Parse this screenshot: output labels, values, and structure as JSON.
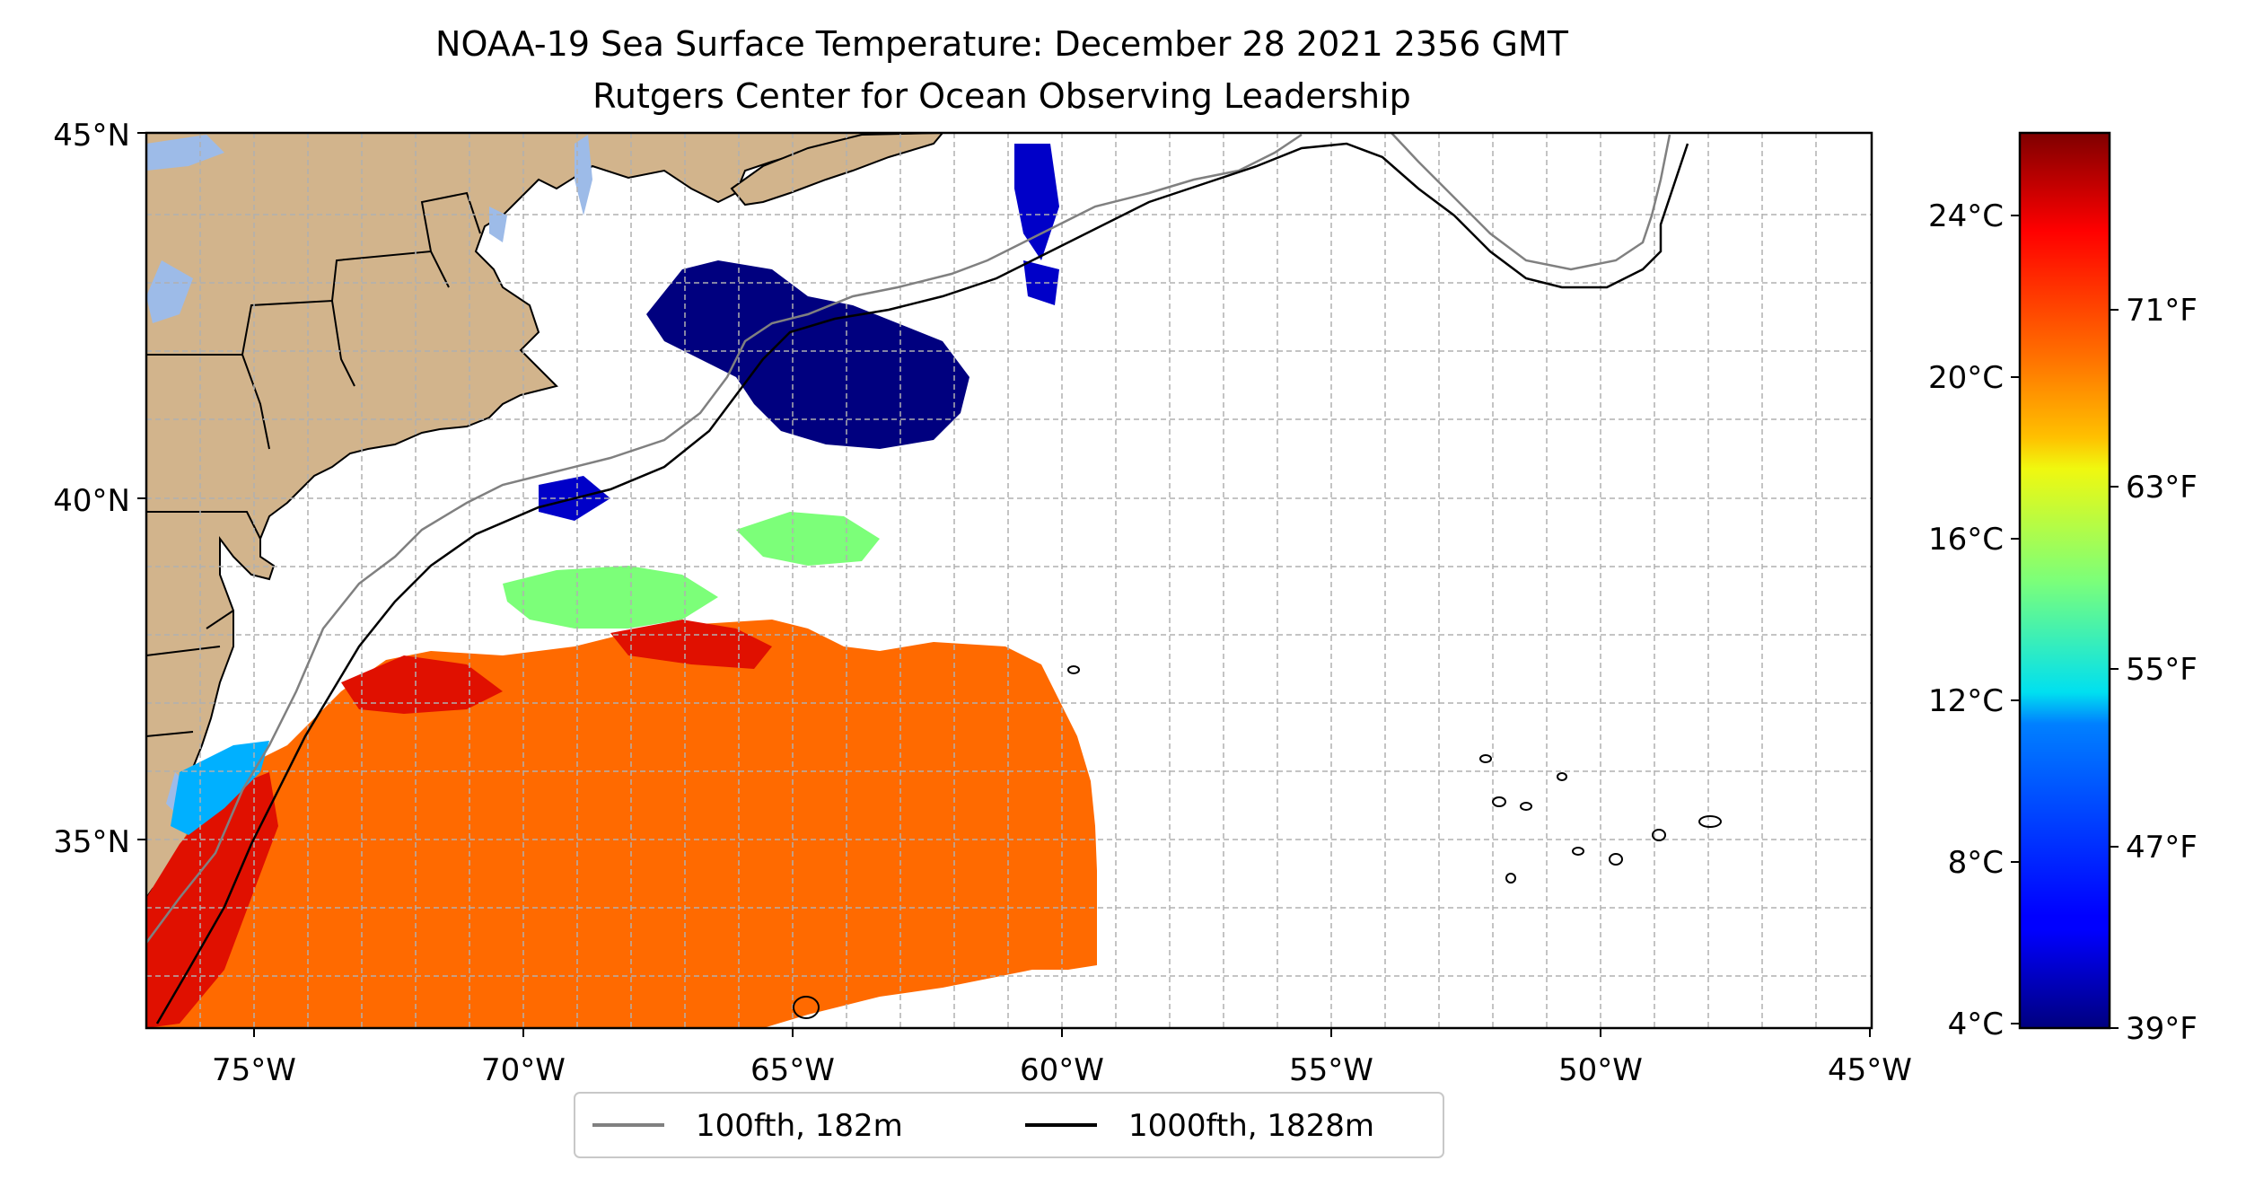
{
  "title": {
    "line1": "NOAA-19 Sea Surface Temperature: December 28 2021 2356 GMT",
    "line2": "Rutgers Center for Ocean Observing Leadership"
  },
  "map": {
    "lon_range": [
      -77,
      -45
    ],
    "lat_range": [
      32.5,
      45
    ],
    "x_ticks": [
      "75°W",
      "70°W",
      "65°W",
      "60°W",
      "55°W",
      "50°W",
      "45°W"
    ],
    "y_ticks": [
      "45°N",
      "40°N",
      "35°N"
    ],
    "colors": {
      "land": "#D2B48C",
      "lakes": "#9DBBE8",
      "ocean": "#FFFFFF",
      "grid": "#B0B0B0"
    }
  },
  "colorbar": {
    "celsius_ticks": [
      "24°C",
      "20°C",
      "16°C",
      "12°C",
      "8°C",
      "4°C"
    ],
    "fahrenheit_ticks": [
      "71°F",
      "63°F",
      "55°F",
      "47°F",
      "39°F"
    ],
    "range_c": [
      3.9,
      25.6
    ],
    "colormap": "jet"
  },
  "legend": {
    "items": [
      {
        "label": "100fth, 182m",
        "color": "#808080"
      },
      {
        "label": "1000fth, 1828m",
        "color": "#000000"
      }
    ]
  }
}
